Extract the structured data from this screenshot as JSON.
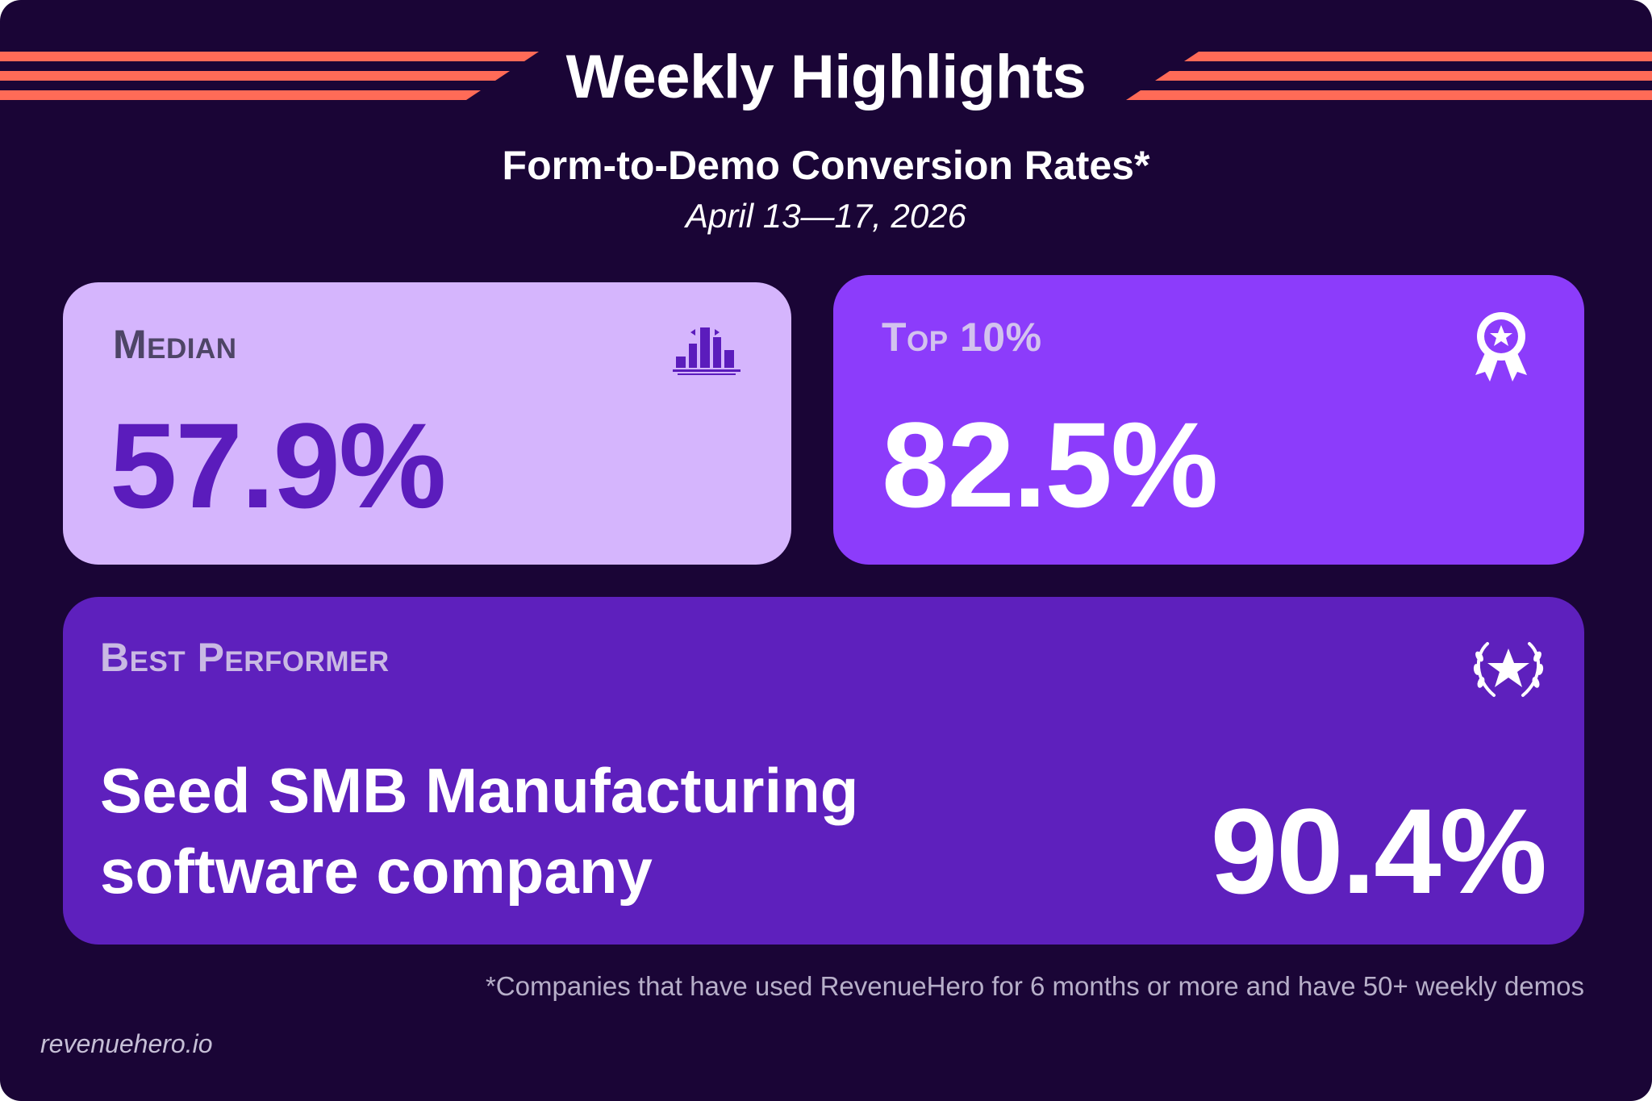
{
  "header": {
    "title": "Weekly Highlights",
    "subtitle": "Form-to-Demo Conversion Rates*",
    "date_range": "April 13—17, 2026"
  },
  "cards": {
    "median": {
      "label": "Median",
      "value": "57.9%",
      "icon": "bar-chart-icon"
    },
    "top10": {
      "label": "Top 10%",
      "value": "82.5%",
      "icon": "award-ribbon-icon"
    },
    "best": {
      "label": "Best Performer",
      "name_line1": "Seed SMB Manufacturing",
      "name_line2": "software company",
      "value": "90.4%",
      "icon": "laurel-star-icon"
    }
  },
  "footnote": "*Companies that have used RevenueHero for 6 months or more and have 50+ weekly demos",
  "brand": "revenuehero.io",
  "colors": {
    "background": "#1a0536",
    "accent_stripes": "#ff6b57",
    "median_card": "#d5b5fd",
    "top10_card": "#8c3cfb",
    "best_card": "#5e20bd",
    "median_value": "#5b1cbc"
  }
}
